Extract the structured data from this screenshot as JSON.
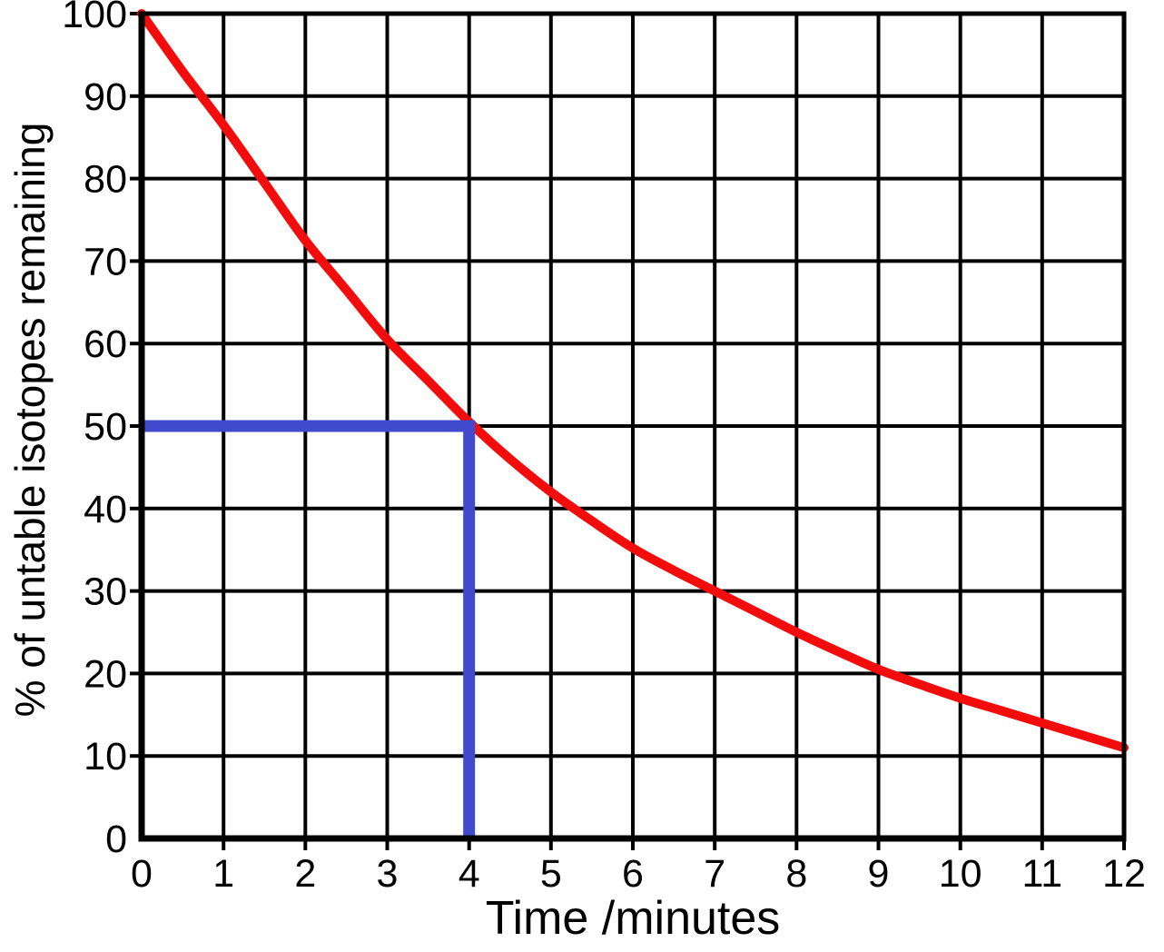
{
  "page": {
    "background": "#ffffff"
  },
  "chart_data": {
    "type": "line",
    "title": "",
    "xlabel": "Time /minutes",
    "ylabel": "% of untable isotopes remaining",
    "xlim": [
      0,
      12
    ],
    "ylim": [
      0,
      100
    ],
    "x_ticks": [
      0,
      1,
      2,
      3,
      4,
      5,
      6,
      7,
      8,
      9,
      10,
      11,
      12
    ],
    "y_ticks": [
      0,
      10,
      20,
      30,
      40,
      50,
      60,
      70,
      80,
      90,
      100
    ],
    "grid": true,
    "axis_color": "#000000",
    "grid_color": "#000000",
    "series": [
      {
        "name": "percent-isotopes-remaining",
        "color": "#f20c0c",
        "points": [
          [
            0,
            100
          ],
          [
            0.5,
            93
          ],
          [
            1,
            86.5
          ],
          [
            1.5,
            79.5
          ],
          [
            2,
            72.5
          ],
          [
            2.5,
            66.5
          ],
          [
            3,
            60.5
          ],
          [
            3.5,
            55.5
          ],
          [
            4,
            50.5
          ],
          [
            4.5,
            46
          ],
          [
            5,
            42
          ],
          [
            5.5,
            38.5
          ],
          [
            6,
            35.2
          ],
          [
            6.5,
            32.5
          ],
          [
            7,
            30
          ],
          [
            7.5,
            27.5
          ],
          [
            8,
            25
          ],
          [
            8.5,
            22.7
          ],
          [
            9,
            20.5
          ],
          [
            9.5,
            18.7
          ],
          [
            10,
            17
          ],
          [
            10.5,
            15.5
          ],
          [
            11,
            14
          ],
          [
            11.5,
            12.5
          ],
          [
            12,
            11
          ]
        ]
      }
    ],
    "guides": {
      "half_life": {
        "x": 4,
        "y": 50,
        "color": "#4149cc"
      }
    }
  }
}
